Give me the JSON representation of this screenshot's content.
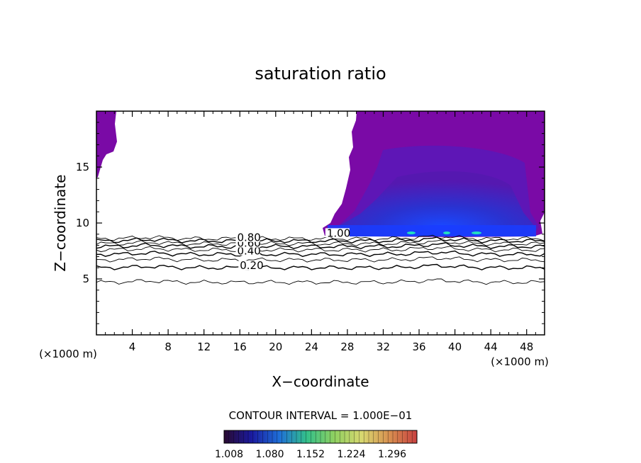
{
  "chart_data": {
    "type": "contour",
    "title": "saturation ratio",
    "xlabel": "X−coordinate",
    "ylabel": "Z−coordinate",
    "x_unit_left": "(×1000 m)",
    "x_unit_right": "(×1000 m)",
    "xlim": [
      0,
      50
    ],
    "ylim": [
      0,
      20
    ],
    "x_ticks": [
      4,
      8,
      12,
      16,
      20,
      24,
      28,
      32,
      36,
      40,
      44,
      48
    ],
    "x_tick_labels": [
      "4",
      "8",
      "12",
      "16",
      "20",
      "24",
      "28",
      "32",
      "36",
      "40",
      "44",
      "48"
    ],
    "y_ticks": [
      5,
      10,
      15
    ],
    "y_tick_labels": [
      "5",
      "10",
      "15"
    ],
    "contour_interval_text": "CONTOUR INTERVAL = 1.000E−01",
    "contour_labels": [
      {
        "text": "0.20",
        "x": 16.0,
        "z": 6.0
      },
      {
        "text": "0.40",
        "x": 15.7,
        "z": 7.3
      },
      {
        "text": "0.60",
        "x": 15.7,
        "z": 8.0
      },
      {
        "text": "0.80",
        "x": 15.7,
        "z": 8.5
      },
      {
        "text": "1.00",
        "x": 25.7,
        "z": 8.9
      }
    ],
    "contour_lines": [
      {
        "level": 0.1,
        "z": 4.7
      },
      {
        "level": 0.2,
        "z": 6.0
      },
      {
        "level": 0.3,
        "z": 6.7
      },
      {
        "level": 0.4,
        "z": 7.2
      },
      {
        "level": 0.5,
        "z": 7.6
      },
      {
        "level": 0.6,
        "z": 7.9
      },
      {
        "level": 0.7,
        "z": 8.15
      },
      {
        "level": 0.8,
        "z": 8.4
      },
      {
        "level": 0.9,
        "z": 8.6
      }
    ],
    "colorbar": {
      "tick_labels": [
        "1.008",
        "1.080",
        "1.152",
        "1.224",
        "1.296"
      ],
      "colors": [
        "#2a0a30",
        "#1a1aa0",
        "#1f6fd8",
        "#33c08a",
        "#8fd060",
        "#d8d870",
        "#d89050",
        "#c84040"
      ]
    },
    "colors": {
      "supersat_dark": "#7b0aa8",
      "supersat_mid": "#5a1ab8",
      "supersat_blue": "#3a2ad8",
      "supersat_bright": "#1a4aff",
      "cyan_spot": "#22e0c0",
      "line": "#000000"
    }
  }
}
